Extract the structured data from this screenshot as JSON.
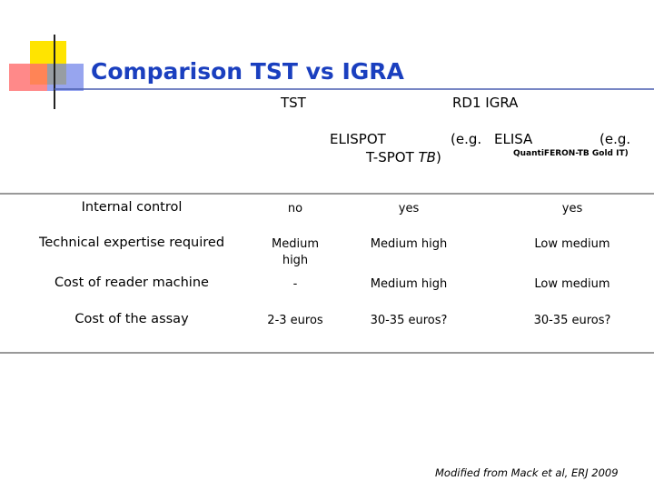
{
  "header": {
    "title": "Comparison TST vs IGRA"
  },
  "table": {
    "column_groups": [
      "TST",
      "RD1 IGRA"
    ],
    "subheaders": {
      "elispot": {
        "name": "ELISPOT",
        "open": "(e.g.",
        "test": "T-SPOT",
        "test_italic": "TB",
        "close": ")"
      },
      "elisa": {
        "name": "ELISA",
        "open": "(e.g.",
        "test": "QuantiFERON-TB Gold IT)"
      }
    },
    "rows": [
      [
        "Internal control",
        "no",
        "yes",
        "yes"
      ],
      [
        "Technical expertise required",
        "Medium high",
        "Medium high",
        "Low medium"
      ],
      [
        "Cost of reader machine",
        "-",
        "Medium high",
        "Low medium"
      ],
      [
        "Cost of the assay",
        "2-3 euros",
        "30-35 euros?",
        "30-35 euros?"
      ]
    ]
  },
  "footer": {
    "note": "Modified from Mack et al, ERJ 2009"
  }
}
